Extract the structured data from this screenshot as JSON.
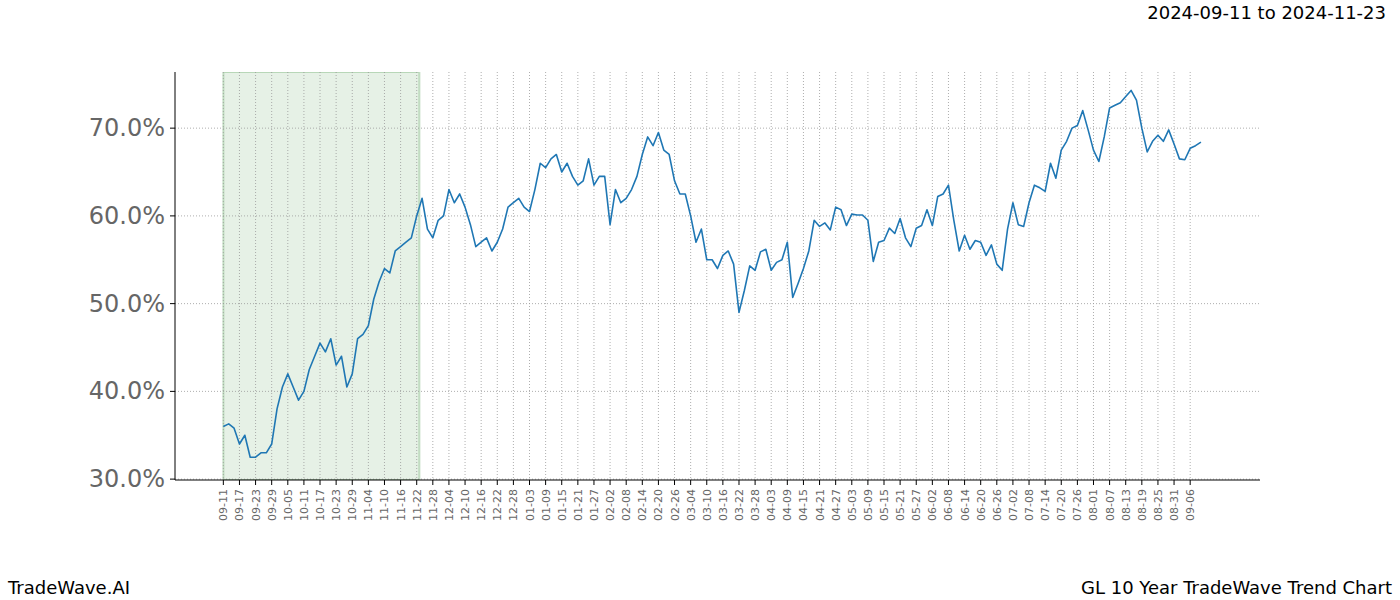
{
  "chart_data": {
    "type": "line",
    "title": "2024-09-11 to 2024-11-23",
    "annotations": [
      "TradeWave.AI",
      "GL 10 Year TradeWave Trend Chart"
    ],
    "categories": [
      "09-11",
      null,
      null,
      "09-17",
      null,
      null,
      "09-23",
      null,
      null,
      "09-29",
      null,
      null,
      "10-05",
      null,
      null,
      "10-11",
      null,
      null,
      "10-17",
      null,
      null,
      "10-23",
      null,
      null,
      "10-29",
      null,
      null,
      "11-04",
      null,
      null,
      "11-10",
      null,
      null,
      "11-16",
      null,
      null,
      "11-22",
      null,
      null,
      "11-28",
      null,
      null,
      "12-04",
      null,
      null,
      "12-10",
      null,
      null,
      "12-16",
      null,
      null,
      "12-22",
      null,
      null,
      "12-28",
      null,
      null,
      "01-03",
      null,
      null,
      "01-09",
      null,
      null,
      "01-15",
      null,
      null,
      "01-21",
      null,
      null,
      "01-27",
      null,
      null,
      "02-02",
      null,
      null,
      "02-08",
      null,
      null,
      "02-14",
      null,
      null,
      "02-20",
      null,
      null,
      "02-26",
      null,
      null,
      "03-04",
      null,
      null,
      "03-10",
      null,
      null,
      "03-16",
      null,
      null,
      "03-22",
      null,
      null,
      "03-28",
      null,
      null,
      "04-03",
      null,
      null,
      "04-09",
      null,
      null,
      "04-15",
      null,
      null,
      "04-21",
      null,
      null,
      "04-27",
      null,
      null,
      "05-03",
      null,
      null,
      "05-09",
      null,
      null,
      "05-15",
      null,
      null,
      "05-21",
      null,
      null,
      "05-27",
      null,
      null,
      "06-02",
      null,
      null,
      "06-08",
      null,
      null,
      "06-14",
      null,
      null,
      "06-20",
      null,
      null,
      "06-26",
      null,
      null,
      "07-02",
      null,
      null,
      "07-08",
      null,
      null,
      "07-14",
      null,
      null,
      "07-20",
      null,
      null,
      "07-26",
      null,
      null,
      "08-01",
      null,
      null,
      "08-07",
      null,
      null,
      "08-13",
      null,
      null,
      "08-19",
      null,
      null,
      "08-25",
      null,
      null,
      "08-31",
      null,
      null,
      "09-06",
      null,
      null
    ],
    "values": [
      36,
      36.3,
      35.8,
      34,
      35,
      32.5,
      32.5,
      33,
      33,
      34,
      38,
      40.5,
      42,
      40.5,
      39,
      40,
      42.5,
      44,
      45.5,
      44.5,
      46,
      43,
      44,
      40.5,
      42,
      46,
      46.5,
      47.5,
      50.5,
      52.5,
      54,
      53.5,
      56,
      56.5,
      57,
      57.5,
      60,
      62,
      58.5,
      57.5,
      59.5,
      60,
      63,
      61.5,
      62.5,
      61,
      59,
      56.5,
      57,
      57.5,
      56,
      57,
      58.5,
      61,
      61.5,
      62,
      61,
      60.5,
      63,
      66,
      65.5,
      66.5,
      67,
      65,
      66,
      64.5,
      63.5,
      64,
      66.5,
      63.5,
      64.5,
      64.5,
      59,
      63,
      61.5,
      62,
      63,
      64.5,
      67,
      69,
      68,
      69.5,
      67.5,
      67,
      64,
      62.5,
      62.5,
      60,
      57,
      58.5,
      55,
      55,
      54,
      55.5,
      56,
      54.5,
      49,
      51.5,
      54.3,
      53.8,
      55.9,
      56.2,
      53.8,
      54.7,
      55,
      57,
      50.7,
      52.3,
      54,
      56,
      59.5,
      58.8,
      59.2,
      58.4,
      61,
      60.7,
      58.9,
      60.2,
      60.1,
      60.1,
      59.5,
      54.8,
      57,
      57.2,
      58.6,
      58,
      59.7,
      57.5,
      56.5,
      58.6,
      58.9,
      60.7,
      58.9,
      62.2,
      62.5,
      63.5,
      59.5,
      56,
      57.8,
      56.2,
      57.2,
      57,
      55.5,
      56.7,
      54.5,
      53.8,
      58.5,
      61.5,
      59,
      58.8,
      61.5,
      63.5,
      63.2,
      62.8,
      66,
      64.3,
      67.5,
      68.5,
      70,
      70.3,
      72,
      69.8,
      67.5,
      66.2,
      69,
      72.3,
      72.6,
      72.9,
      73.6,
      74.3,
      73.2,
      70,
      67.3,
      68.5,
      69.2,
      68.5,
      69.8,
      68.2,
      66.5,
      66.4,
      67.7,
      68,
      68.4
    ],
    "color": "#1f77b4",
    "highlight": [
      0,
      36.5
    ],
    "ylim": [
      29.9,
      76.4
    ],
    "yticks": [
      {
        "value": 30,
        "label": "30.0%"
      },
      {
        "value": 40,
        "label": "40.0%"
      },
      {
        "value": 50,
        "label": "50.0%"
      },
      {
        "value": 60,
        "label": "60.0%"
      },
      {
        "value": 70,
        "label": "70.0%"
      }
    ],
    "grid": true
  }
}
